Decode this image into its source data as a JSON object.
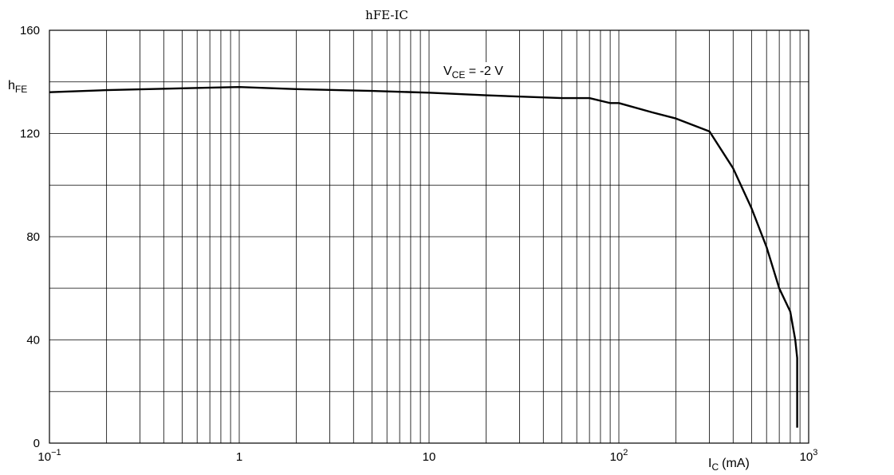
{
  "chart_data": {
    "type": "line",
    "title": "hFE-IC",
    "ylabel": "h",
    "ylabel_sub": "FE",
    "xlabel": "I",
    "xlabel_sub": "C",
    "xlabel_unit": "(mA)",
    "annotation": {
      "text": "V",
      "sub": "CE",
      "rest": " = -2 V"
    },
    "x_scale": "log",
    "xlim": [
      0.1,
      1000
    ],
    "ylim": [
      0,
      160
    ],
    "grid": true,
    "x_ticks": [
      {
        "base": "10",
        "exp": "−1"
      },
      {
        "base": "1",
        "exp": ""
      },
      {
        "base": "10",
        "exp": ""
      },
      {
        "base": "10",
        "exp": "2"
      },
      {
        "base": "10",
        "exp": "3"
      }
    ],
    "y_ticks": [
      "0",
      "40",
      "80",
      "120",
      "160"
    ],
    "series": [
      {
        "x": [
          0.1,
          0.2,
          0.5,
          1,
          2,
          5,
          10,
          20,
          50,
          70,
          90,
          100,
          150,
          200,
          300,
          400,
          500,
          600,
          700,
          800,
          850,
          870,
          870
        ],
        "y": [
          136,
          136.8,
          137.5,
          138,
          137.2,
          136.5,
          135.8,
          134.8,
          133.7,
          133.7,
          131.8,
          131.8,
          128.2,
          125.8,
          120.8,
          106.5,
          91,
          76,
          60,
          51,
          40,
          33,
          6
        ]
      }
    ]
  }
}
